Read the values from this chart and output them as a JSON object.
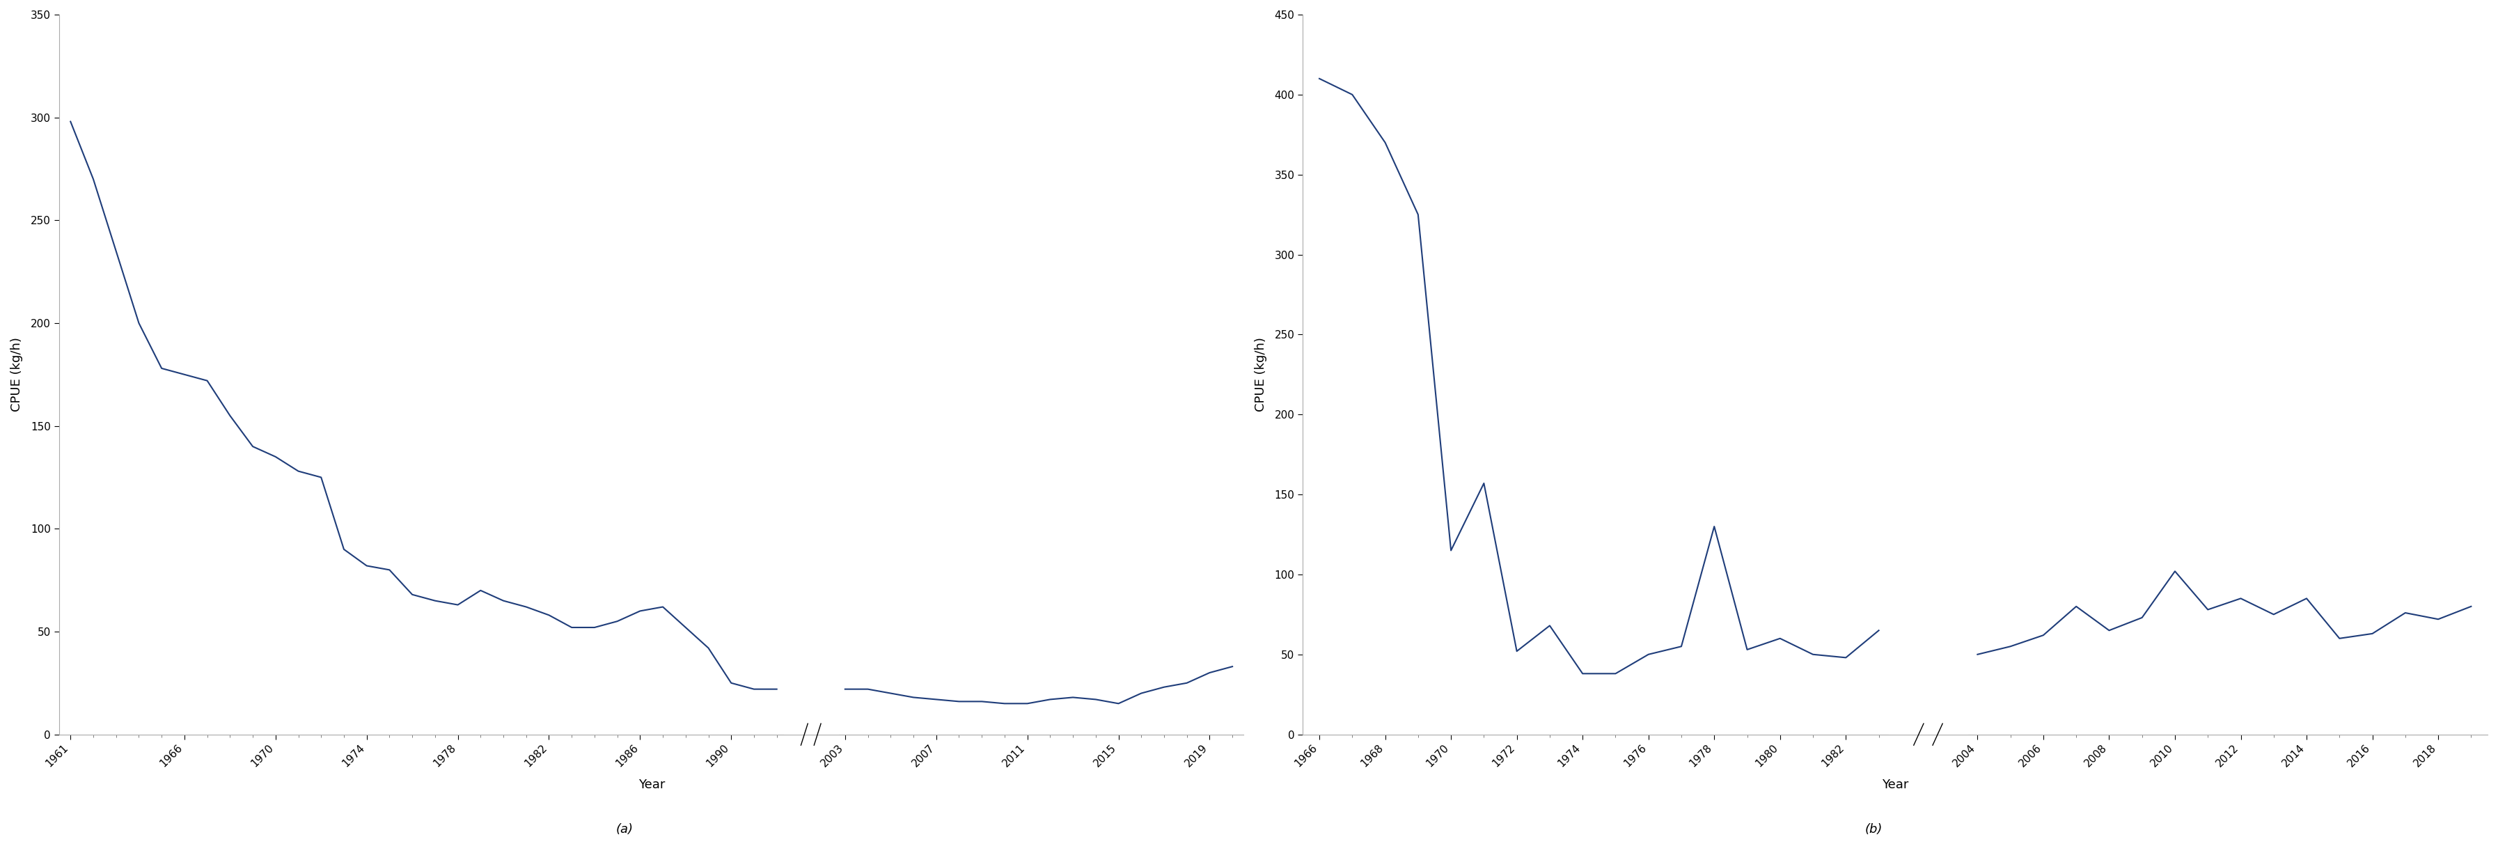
{
  "chart_a": {
    "ylabel": "CPUE (kg/h)",
    "xlabel": "Year",
    "label": "(a)",
    "line_color": "#1f3d7a",
    "linewidth": 1.5,
    "ylim": [
      0,
      350
    ],
    "yticks": [
      0,
      50,
      100,
      150,
      200,
      250,
      300,
      350
    ],
    "segment1": {
      "years": [
        1961,
        1962,
        1963,
        1964,
        1965,
        1966,
        1967,
        1968,
        1969,
        1970,
        1971,
        1972,
        1973,
        1974,
        1975,
        1976,
        1977,
        1978,
        1979,
        1980,
        1981,
        1982,
        1983,
        1984,
        1985,
        1986,
        1987,
        1988,
        1989,
        1990,
        1991,
        1992
      ],
      "values": [
        298,
        270,
        235,
        200,
        178,
        175,
        172,
        155,
        140,
        135,
        128,
        125,
        90,
        82,
        80,
        68,
        65,
        63,
        70,
        65,
        62,
        58,
        52,
        52,
        55,
        60,
        62,
        52,
        42,
        25,
        22,
        22
      ]
    },
    "segment2": {
      "years": [
        2003,
        2004,
        2005,
        2006,
        2007,
        2008,
        2009,
        2010,
        2011,
        2012,
        2013,
        2014,
        2015,
        2016,
        2017,
        2018,
        2019,
        2020
      ],
      "values": [
        22,
        22,
        20,
        18,
        17,
        16,
        16,
        15,
        15,
        17,
        18,
        17,
        15,
        20,
        23,
        25,
        30,
        33
      ]
    },
    "xticks_seg1": [
      1961,
      1966,
      1970,
      1974,
      1978,
      1982,
      1986,
      1990
    ],
    "xticks_seg2": [
      2003,
      2007,
      2011,
      2015,
      2019
    ]
  },
  "chart_b": {
    "ylabel": "CPUE (kg/h)",
    "xlabel": "Year",
    "label": "(b)",
    "line_color": "#1f3d7a",
    "linewidth": 1.5,
    "ylim": [
      0,
      450
    ],
    "yticks": [
      0,
      50,
      100,
      150,
      200,
      250,
      300,
      350,
      400,
      450
    ],
    "segment1": {
      "years": [
        1966,
        1967,
        1968,
        1969,
        1970,
        1971,
        1972,
        1973,
        1974,
        1975,
        1976,
        1977,
        1978,
        1979,
        1980,
        1981,
        1982,
        1983
      ],
      "values": [
        410,
        400,
        370,
        325,
        115,
        157,
        52,
        68,
        38,
        38,
        50,
        55,
        130,
        53,
        60,
        50,
        48,
        65
      ]
    },
    "segment2": {
      "years": [
        2004,
        2005,
        2006,
        2007,
        2008,
        2009,
        2010,
        2011,
        2012,
        2013,
        2014,
        2015,
        2016,
        2017,
        2018,
        2019
      ],
      "values": [
        50,
        55,
        62,
        80,
        65,
        73,
        102,
        78,
        85,
        75,
        85,
        60,
        63,
        76,
        72,
        80
      ]
    },
    "xticks_seg1": [
      1966,
      1968,
      1970,
      1972,
      1974,
      1976,
      1978,
      1980,
      1982
    ],
    "xticks_seg2": [
      2004,
      2006,
      2008,
      2010,
      2012,
      2014,
      2016,
      2018
    ]
  },
  "bg_color": "#ffffff",
  "spine_color": "#aaaaaa",
  "tick_fontsize": 11,
  "label_fontsize": 13,
  "sublabel_fontsize": 13
}
